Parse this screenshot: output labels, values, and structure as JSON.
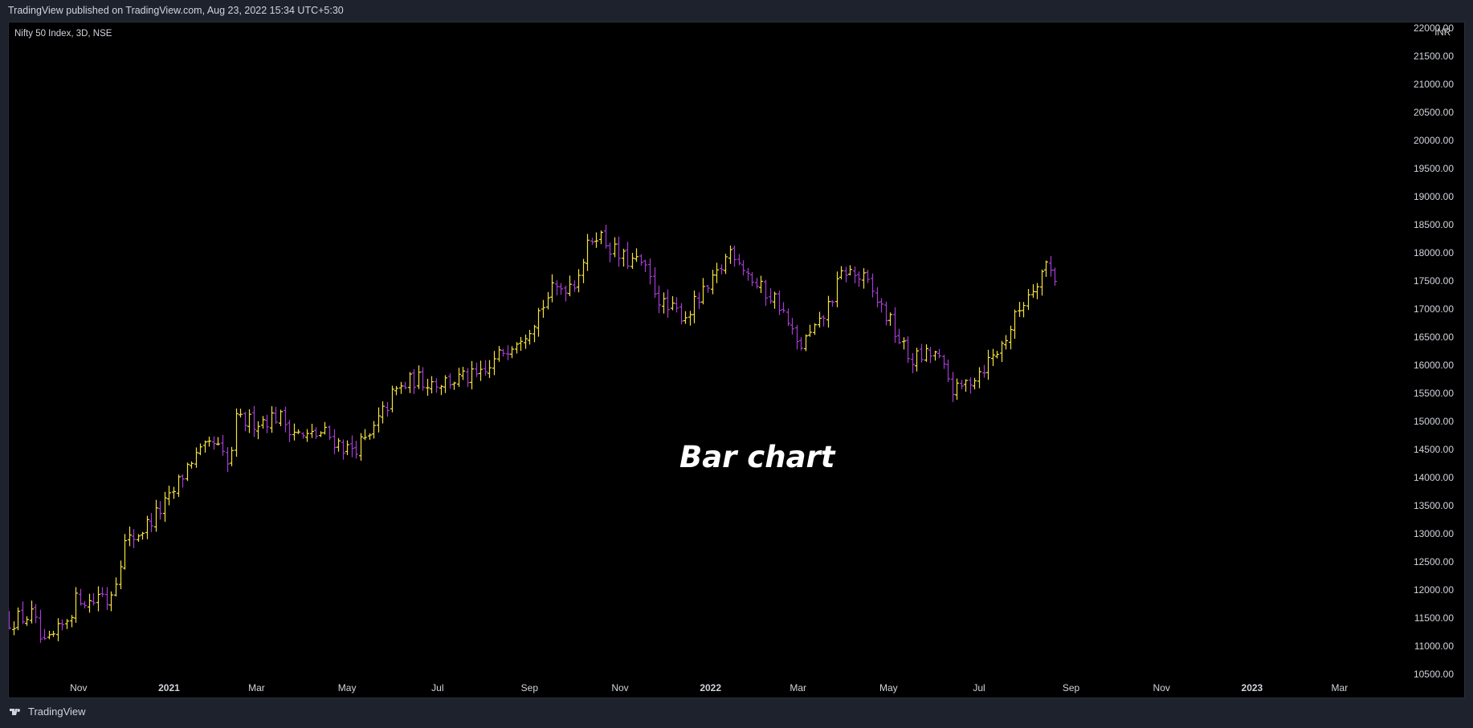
{
  "header": {
    "published_text": "TradingView published on TradingView.com, Aug 23, 2022 15:34 UTC+5:30"
  },
  "chart": {
    "symbol_label": "Nifty 50 Index, 3D, NSE",
    "currency": "INR",
    "caption": "Bar chart"
  },
  "footer": {
    "brand": "TradingView"
  },
  "colors": {
    "background": "#000000",
    "up_bar": "#f5e33b",
    "down_bar": "#a63bd4"
  },
  "chart_data": {
    "type": "bar",
    "subtype": "ohlc",
    "price_axis": {
      "position": "right",
      "range": [
        10270,
        22100
      ],
      "ticks": [
        22000,
        21500,
        21000,
        20500,
        20000,
        19500,
        19000,
        18500,
        18000,
        17500,
        17000,
        16500,
        16000,
        15500,
        15000,
        14500,
        14000,
        13500,
        13000,
        12500,
        12000,
        11500,
        11000,
        10500
      ],
      "tick_labels": [
        "22000.00",
        "21500.00",
        "21000.00",
        "20500.00",
        "20000.00",
        "19500.00",
        "19000.00",
        "18500.00",
        "18000.00",
        "17500.00",
        "17000.00",
        "16500.00",
        "16000.00",
        "15500.00",
        "15000.00",
        "14500.00",
        "14000.00",
        "13500.00",
        "13000.00",
        "12500.00",
        "12000.00",
        "11500.00",
        "11000.00",
        "10500.00"
      ]
    },
    "time_axis": {
      "range": [
        "2020-09-15",
        "2023-04-15"
      ],
      "ticks": [
        {
          "label": "Nov",
          "date": "2020-11-01",
          "year": false
        },
        {
          "label": "2021",
          "date": "2021-01-01",
          "year": true
        },
        {
          "label": "Mar",
          "date": "2021-03-01",
          "year": false
        },
        {
          "label": "May",
          "date": "2021-05-01",
          "year": false
        },
        {
          "label": "Jul",
          "date": "2021-07-01",
          "year": false
        },
        {
          "label": "Sep",
          "date": "2021-09-01",
          "year": false
        },
        {
          "label": "Nov",
          "date": "2021-11-01",
          "year": false
        },
        {
          "label": "2022",
          "date": "2022-01-01",
          "year": true
        },
        {
          "label": "Mar",
          "date": "2022-03-01",
          "year": false
        },
        {
          "label": "May",
          "date": "2022-05-01",
          "year": false
        },
        {
          "label": "Jul",
          "date": "2022-07-01",
          "year": false
        },
        {
          "label": "Sep",
          "date": "2022-09-01",
          "year": false
        },
        {
          "label": "Nov",
          "date": "2022-11-01",
          "year": false
        },
        {
          "label": "2023",
          "date": "2023-01-01",
          "year": true
        },
        {
          "label": "Mar",
          "date": "2023-03-01",
          "year": false
        }
      ]
    },
    "bar_interval": "3D",
    "series_close": [
      [
        "2020-09-15",
        11450
      ],
      [
        "2020-10-01",
        11550
      ],
      [
        "2020-10-08",
        10950
      ],
      [
        "2020-10-20",
        11300
      ],
      [
        "2020-11-01",
        11900
      ],
      [
        "2020-11-10",
        11750
      ],
      [
        "2020-11-15",
        12000
      ],
      [
        "2020-11-20",
        11800
      ],
      [
        "2020-11-25",
        12100
      ],
      [
        "2020-12-01",
        12800
      ],
      [
        "2020-12-15",
        13100
      ],
      [
        "2021-01-01",
        13600
      ],
      [
        "2021-01-15",
        14300
      ],
      [
        "2021-02-01",
        14600
      ],
      [
        "2021-02-10",
        14150
      ],
      [
        "2021-02-15",
        15000
      ],
      [
        "2021-03-01",
        15000
      ],
      [
        "2021-03-15",
        15100
      ],
      [
        "2021-04-01",
        14700
      ],
      [
        "2021-04-15",
        14800
      ],
      [
        "2021-05-01",
        14500
      ],
      [
        "2021-05-15",
        14650
      ],
      [
        "2021-06-01",
        15500
      ],
      [
        "2021-06-15",
        15750
      ],
      [
        "2021-07-01",
        15700
      ],
      [
        "2021-07-15",
        15750
      ],
      [
        "2021-08-01",
        15800
      ],
      [
        "2021-08-15",
        16300
      ],
      [
        "2021-09-01",
        16700
      ],
      [
        "2021-09-15",
        17300
      ],
      [
        "2021-10-01",
        17500
      ],
      [
        "2021-10-15",
        18400
      ],
      [
        "2021-11-01",
        17900
      ],
      [
        "2021-11-15",
        17800
      ],
      [
        "2021-12-01",
        17000
      ],
      [
        "2021-12-15",
        16900
      ],
      [
        "2022-01-01",
        17400
      ],
      [
        "2022-01-15",
        18100
      ],
      [
        "2022-02-01",
        17400
      ],
      [
        "2022-02-15",
        17150
      ],
      [
        "2022-03-01",
        16300
      ],
      [
        "2022-03-15",
        16700
      ],
      [
        "2022-04-01",
        17700
      ],
      [
        "2022-04-15",
        17500
      ],
      [
        "2022-05-01",
        16800
      ],
      [
        "2022-05-15",
        16100
      ],
      [
        "2022-06-01",
        16200
      ],
      [
        "2022-06-15",
        15500
      ],
      [
        "2022-07-01",
        15900
      ],
      [
        "2022-07-15",
        16300
      ],
      [
        "2022-08-01",
        17200
      ],
      [
        "2022-08-15",
        17800
      ],
      [
        "2022-08-23",
        17500
      ]
    ]
  }
}
